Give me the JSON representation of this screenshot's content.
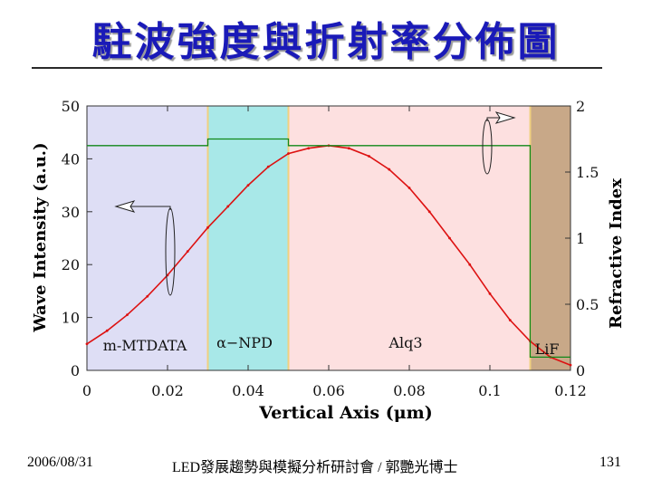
{
  "slide": {
    "title": "駐波強度與折射率分佈圖",
    "footer_date": "2006/08/31",
    "footer_center": "LED發展趨勢與模擬分析研討會 / 郭艷光博士",
    "page_number": "131"
  },
  "colors": {
    "title": "#1a1ab8",
    "layer_m_mtdata": "#dedef5",
    "layer_npd": "#a8e8e8",
    "layer_alq3": "#fde0e0",
    "layer_lif": "#c8a888",
    "intensity_curve": "#dd1111",
    "refractive_index": "#11881a",
    "layer_border": "#f0d080"
  },
  "chart_data": {
    "type": "line",
    "xlabel": "Vertical Axis (μm)",
    "ylabel": "Wave Intensity (a.u.)",
    "y2label": "Refractive Index",
    "xlim": [
      0,
      0.12
    ],
    "ylim": [
      0,
      50
    ],
    "y2lim": [
      0,
      2
    ],
    "x_ticks": [
      "0",
      "0.02",
      "0.04",
      "0.06",
      "0.08",
      "0.1",
      "0.12"
    ],
    "x_tick_values": [
      0,
      0.02,
      0.04,
      0.06,
      0.08,
      0.1,
      0.12
    ],
    "y_ticks": [
      "0",
      "10",
      "20",
      "30",
      "40",
      "50"
    ],
    "y_tick_values": [
      0,
      10,
      20,
      30,
      40,
      50
    ],
    "y2_ticks": [
      "0",
      "0.5",
      "1",
      "1.5",
      "2"
    ],
    "y2_tick_values": [
      0,
      0.5,
      1,
      1.5,
      2
    ],
    "layers": [
      {
        "label": "m-MTDATA",
        "x_start": 0,
        "x_end": 0.03,
        "color": "#dedef5"
      },
      {
        "label": "α−NPD",
        "x_start": 0.03,
        "x_end": 0.05,
        "color": "#a8e8e8"
      },
      {
        "label": "Alq3",
        "x_start": 0.05,
        "x_end": 0.11,
        "color": "#fde0e0"
      },
      {
        "label": "LiF",
        "x_start": 0.11,
        "x_end": 0.12,
        "color": "#c8a888"
      }
    ],
    "series": [
      {
        "axis": "left",
        "x": [
          0,
          0.005,
          0.01,
          0.015,
          0.02,
          0.025,
          0.03,
          0.035,
          0.04,
          0.045,
          0.05,
          0.055,
          0.06,
          0.065,
          0.07,
          0.075,
          0.08,
          0.085,
          0.09,
          0.095,
          0.1,
          0.105,
          0.11,
          0.115,
          0.12
        ],
        "values": [
          5,
          7.5,
          10.5,
          14,
          18,
          22.5,
          27,
          31,
          35,
          38.5,
          41,
          42,
          42.5,
          42,
          40.5,
          38,
          34.5,
          30,
          25,
          20,
          14.5,
          9.5,
          5.5,
          2.5,
          1
        ],
        "color": "#dd1111"
      },
      {
        "axis": "right",
        "x": [
          0,
          0.03,
          0.03,
          0.05,
          0.05,
          0.11,
          0.11,
          0.12
        ],
        "values": [
          1.7,
          1.7,
          1.75,
          1.75,
          1.7,
          1.7,
          0.1,
          0.1
        ],
        "color": "#11881a"
      }
    ]
  }
}
